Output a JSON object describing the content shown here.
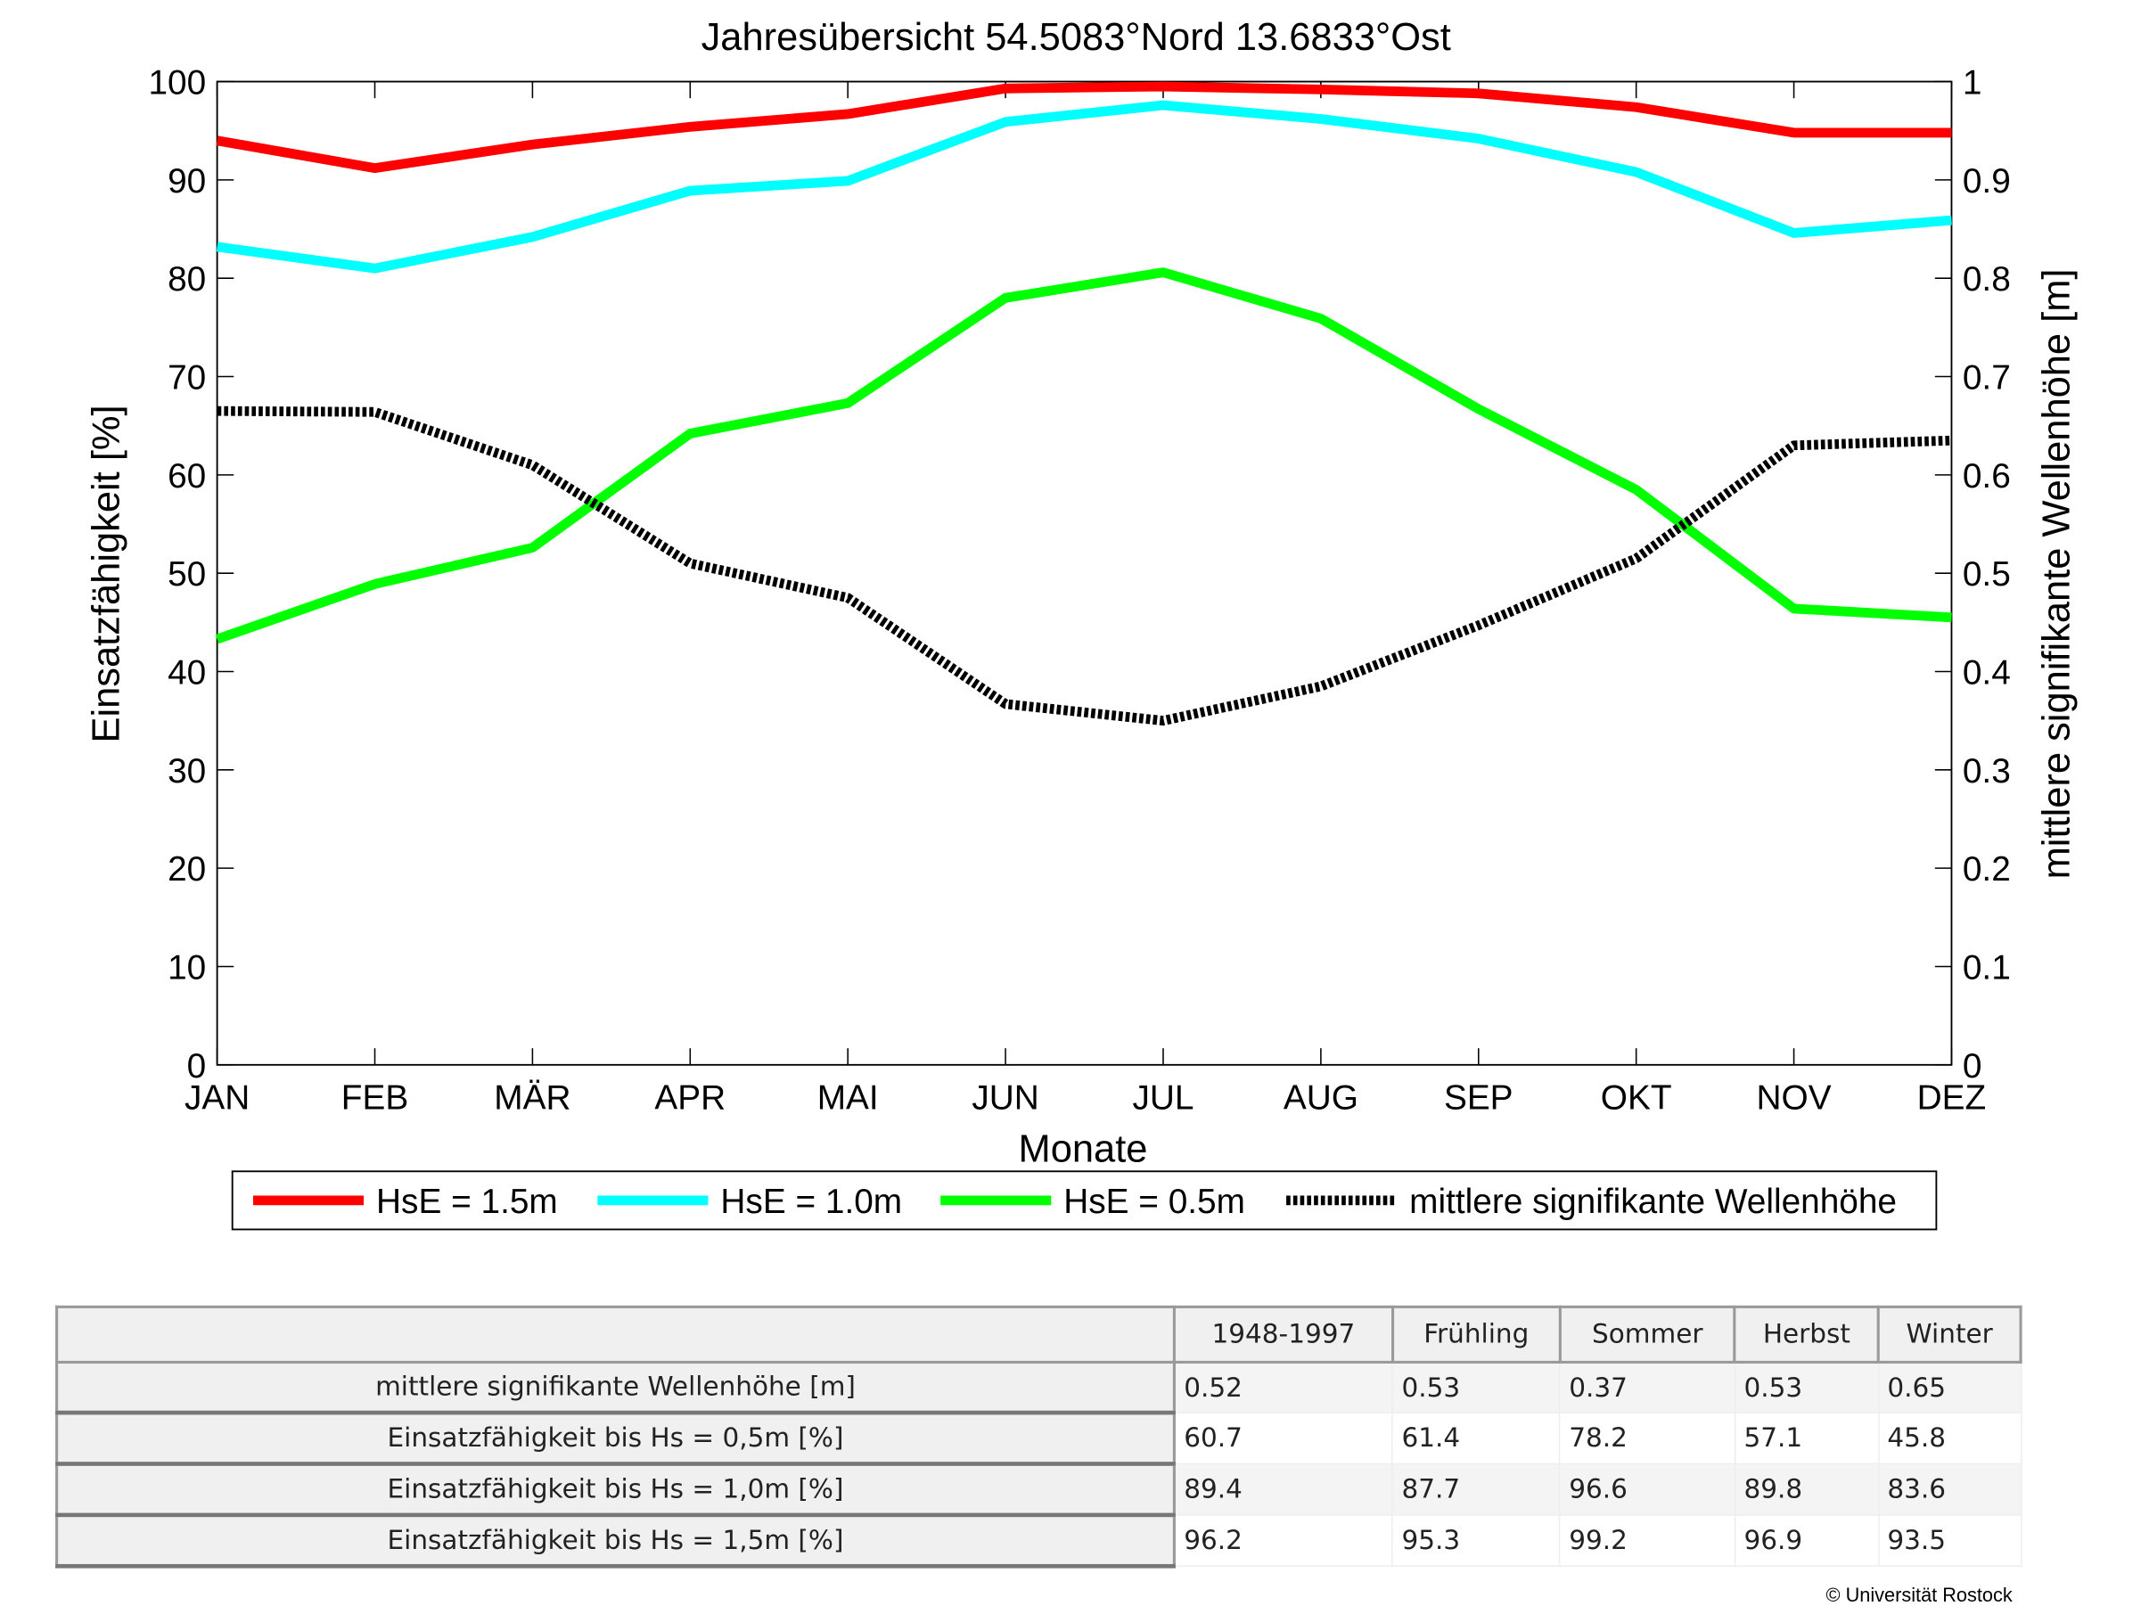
{
  "chart_data": {
    "type": "line",
    "title": "Jahresübersicht  54.5083°Nord  13.6833°Ost",
    "xlabel": "Monate",
    "ylabel": "Einsatzfähigkeit [%]",
    "y2label": "mittlere signifikante Wellenhöhe [m]",
    "categories": [
      "JAN",
      "FEB",
      "MÄR",
      "APR",
      "MAI",
      "JUN",
      "JUL",
      "AUG",
      "SEP",
      "OKT",
      "NOV",
      "DEZ"
    ],
    "ylim": [
      0,
      100
    ],
    "y2lim": [
      0,
      1
    ],
    "yticks": [
      "0",
      "10",
      "20",
      "30",
      "40",
      "50",
      "60",
      "70",
      "80",
      "90",
      "100"
    ],
    "y2ticks": [
      "0",
      "0.1",
      "0.2",
      "0.3",
      "0.4",
      "0.5",
      "0.6",
      "0.7",
      "0.8",
      "0.9",
      "1"
    ],
    "legend_position": "bottom",
    "series": [
      {
        "name": "HsE = 1.5m",
        "axis": "left",
        "color": "#ff0000",
        "style": "solid",
        "values": [
          94,
          91.2,
          93.6,
          95.4,
          96.7,
          99.3,
          99.5,
          99.2,
          98.8,
          97.4,
          94.8,
          94.8
        ]
      },
      {
        "name": "HsE = 1.0m",
        "axis": "left",
        "color": "#00ffff",
        "style": "solid",
        "values": [
          83.2,
          81,
          84.2,
          88.9,
          89.9,
          95.9,
          97.6,
          96.2,
          94.2,
          90.8,
          84.6,
          85.9
        ]
      },
      {
        "name": "HsE = 0.5m",
        "axis": "left",
        "color": "#00ff00",
        "style": "solid",
        "values": [
          43.3,
          48.9,
          52.6,
          64.2,
          67.3,
          78,
          80.6,
          75.9,
          66.7,
          58.5,
          46.4,
          45.5
        ]
      },
      {
        "name": "mittlere signifikante Wellenhöhe",
        "axis": "right",
        "color": "#000000",
        "style": "dotted",
        "values": [
          0.665,
          0.664,
          0.61,
          0.51,
          0.475,
          0.367,
          0.35,
          0.385,
          0.447,
          0.515,
          0.63,
          0.635
        ]
      }
    ]
  },
  "table": {
    "headers": [
      "",
      "1948-1997",
      "Frühling",
      "Sommer",
      "Herbst",
      "Winter"
    ],
    "rows": [
      {
        "label": "mittlere signifikante Wellenhöhe [m]",
        "values": [
          "0.52",
          "0.53",
          "0.37",
          "0.53",
          "0.65"
        ]
      },
      {
        "label": "Einsatzfähigkeit bis Hs = 0,5m [%]",
        "values": [
          "60.7",
          "61.4",
          "78.2",
          "57.1",
          "45.8"
        ]
      },
      {
        "label": "Einsatzfähigkeit bis Hs = 1,0m [%]",
        "values": [
          "89.4",
          "87.7",
          "96.6",
          "89.8",
          "83.6"
        ]
      },
      {
        "label": "Einsatzfähigkeit bis Hs = 1,5m [%]",
        "values": [
          "96.2",
          "95.3",
          "99.2",
          "96.9",
          "93.5"
        ]
      }
    ]
  },
  "copyright": "© Universität Rostock"
}
